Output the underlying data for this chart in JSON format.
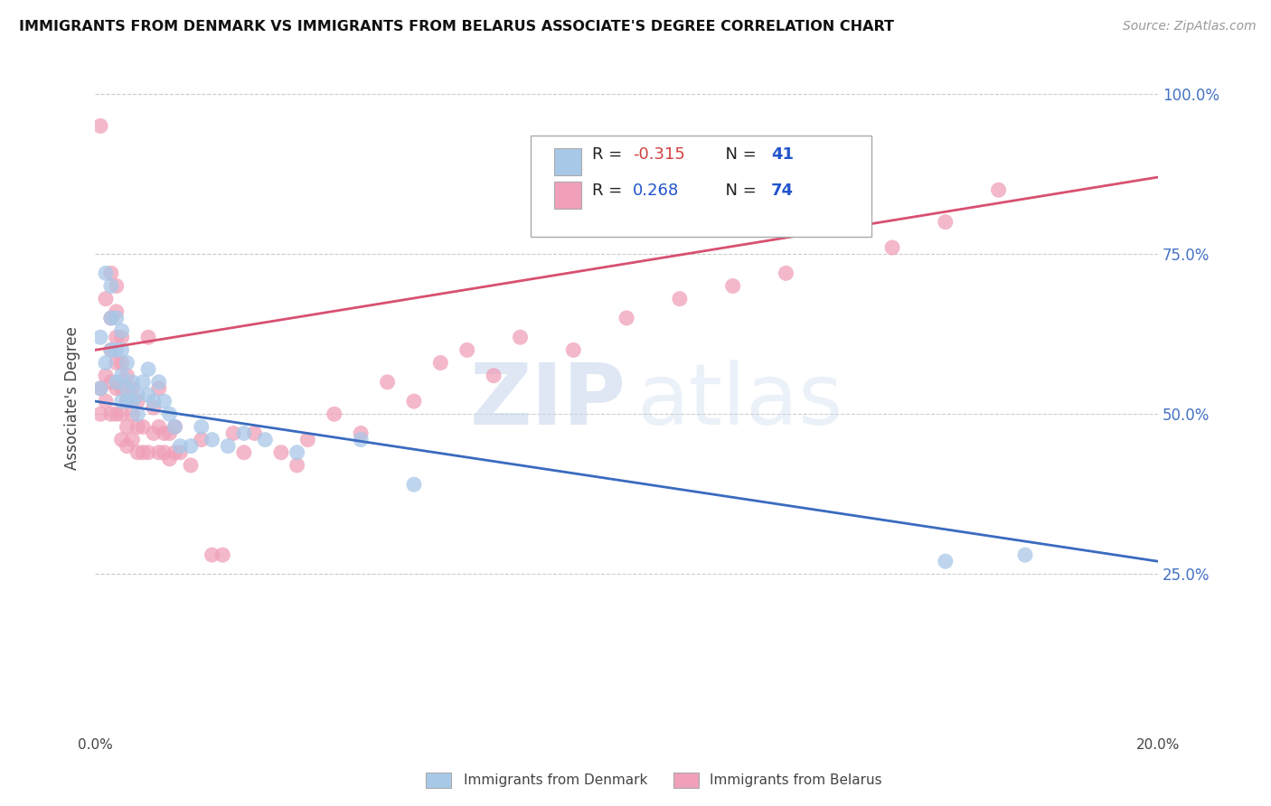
{
  "title": "IMMIGRANTS FROM DENMARK VS IMMIGRANTS FROM BELARUS ASSOCIATE'S DEGREE CORRELATION CHART",
  "source": "Source: ZipAtlas.com",
  "ylabel": "Associate's Degree",
  "denmark_R": -0.315,
  "denmark_N": 41,
  "belarus_R": 0.268,
  "belarus_N": 74,
  "denmark_color": "#a8c8e8",
  "belarus_color": "#f0a0b8",
  "denmark_line_color": "#3a6bbf",
  "belarus_line_color": "#d85070",
  "xlim": [
    0.0,
    0.2
  ],
  "ylim": [
    0.0,
    1.05
  ],
  "watermark_zip": "ZIP",
  "watermark_atlas": "atlas",
  "yticks": [
    0.0,
    0.25,
    0.5,
    0.75,
    1.0
  ],
  "ytick_labels": [
    "",
    "25.0%",
    "50.0%",
    "75.0%",
    "100.0%"
  ],
  "xtick_labels": [
    "0.0%",
    "",
    "",
    "",
    "20.0%"
  ],
  "denmark_x": [
    0.001,
    0.001,
    0.002,
    0.002,
    0.003,
    0.003,
    0.003,
    0.004,
    0.004,
    0.004,
    0.005,
    0.005,
    0.005,
    0.005,
    0.006,
    0.006,
    0.006,
    0.007,
    0.007,
    0.008,
    0.008,
    0.009,
    0.01,
    0.01,
    0.011,
    0.012,
    0.013,
    0.014,
    0.015,
    0.016,
    0.018,
    0.02,
    0.022,
    0.025,
    0.028,
    0.032,
    0.038,
    0.05,
    0.06,
    0.16,
    0.175
  ],
  "denmark_y": [
    0.54,
    0.62,
    0.58,
    0.72,
    0.6,
    0.65,
    0.7,
    0.55,
    0.6,
    0.65,
    0.52,
    0.56,
    0.6,
    0.63,
    0.54,
    0.58,
    0.52,
    0.52,
    0.55,
    0.53,
    0.5,
    0.55,
    0.53,
    0.57,
    0.52,
    0.55,
    0.52,
    0.5,
    0.48,
    0.45,
    0.45,
    0.48,
    0.46,
    0.45,
    0.47,
    0.46,
    0.44,
    0.46,
    0.39,
    0.27,
    0.28
  ],
  "belarus_x": [
    0.001,
    0.001,
    0.001,
    0.002,
    0.002,
    0.002,
    0.003,
    0.003,
    0.003,
    0.003,
    0.003,
    0.004,
    0.004,
    0.004,
    0.004,
    0.004,
    0.004,
    0.005,
    0.005,
    0.005,
    0.005,
    0.005,
    0.006,
    0.006,
    0.006,
    0.006,
    0.007,
    0.007,
    0.007,
    0.008,
    0.008,
    0.008,
    0.009,
    0.009,
    0.01,
    0.01,
    0.011,
    0.011,
    0.012,
    0.012,
    0.012,
    0.013,
    0.013,
    0.014,
    0.014,
    0.015,
    0.015,
    0.016,
    0.018,
    0.02,
    0.022,
    0.024,
    0.026,
    0.028,
    0.03,
    0.035,
    0.038,
    0.04,
    0.045,
    0.05,
    0.055,
    0.06,
    0.065,
    0.07,
    0.075,
    0.08,
    0.09,
    0.1,
    0.11,
    0.12,
    0.13,
    0.15,
    0.16,
    0.17
  ],
  "belarus_y": [
    0.5,
    0.54,
    0.95,
    0.52,
    0.56,
    0.68,
    0.5,
    0.55,
    0.6,
    0.65,
    0.72,
    0.5,
    0.54,
    0.58,
    0.62,
    0.66,
    0.7,
    0.46,
    0.5,
    0.54,
    0.58,
    0.62,
    0.45,
    0.48,
    0.52,
    0.56,
    0.46,
    0.5,
    0.54,
    0.44,
    0.48,
    0.52,
    0.44,
    0.48,
    0.44,
    0.62,
    0.47,
    0.51,
    0.44,
    0.48,
    0.54,
    0.44,
    0.47,
    0.43,
    0.47,
    0.44,
    0.48,
    0.44,
    0.42,
    0.46,
    0.28,
    0.28,
    0.47,
    0.44,
    0.47,
    0.44,
    0.42,
    0.46,
    0.5,
    0.47,
    0.55,
    0.52,
    0.58,
    0.6,
    0.56,
    0.62,
    0.6,
    0.65,
    0.68,
    0.7,
    0.72,
    0.76,
    0.8,
    0.85
  ]
}
